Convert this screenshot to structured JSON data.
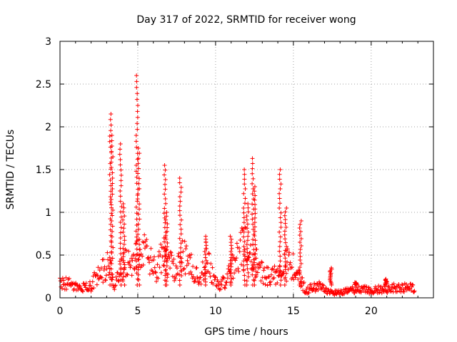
{
  "chart_data": {
    "type": "scatter",
    "title": "Day 317 of 2022, SRMTID for receiver wong",
    "xlabel": "GPS time / hours",
    "ylabel": "SRMTID / TECUs",
    "xlim": [
      0,
      24
    ],
    "ylim": [
      0,
      3
    ],
    "xticks": [
      0,
      5,
      10,
      15,
      20
    ],
    "yticks": [
      0,
      0.5,
      1,
      1.5,
      2,
      2.5,
      3
    ],
    "xtick_labels": [
      "0",
      "5",
      "10",
      "15",
      "20"
    ],
    "ytick_labels": [
      "0",
      "0.5",
      "1",
      "1.5",
      "2",
      "2.5",
      "3"
    ],
    "grid": true,
    "marker": "+",
    "series_color": "#ff0000",
    "baseline": [
      [
        0,
        0.17
      ],
      [
        0.3,
        0.18
      ],
      [
        0.6,
        0.16
      ],
      [
        1.0,
        0.13
      ],
      [
        1.5,
        0.12
      ],
      [
        2.0,
        0.14
      ],
      [
        2.3,
        0.24
      ],
      [
        2.6,
        0.28
      ],
      [
        2.9,
        0.36
      ],
      [
        3.1,
        0.4
      ],
      [
        3.3,
        0.32
      ],
      [
        3.5,
        0.1
      ],
      [
        3.8,
        0.3
      ],
      [
        4.2,
        0.4
      ],
      [
        4.6,
        0.45
      ],
      [
        5.0,
        0.5
      ],
      [
        5.4,
        0.55
      ],
      [
        5.8,
        0.42
      ],
      [
        6.2,
        0.3
      ],
      [
        6.6,
        0.5
      ],
      [
        7.0,
        0.45
      ],
      [
        7.4,
        0.35
      ],
      [
        7.8,
        0.48
      ],
      [
        8.2,
        0.45
      ],
      [
        8.6,
        0.3
      ],
      [
        9.0,
        0.18
      ],
      [
        9.4,
        0.5
      ],
      [
        9.8,
        0.25
      ],
      [
        10.2,
        0.14
      ],
      [
        10.6,
        0.2
      ],
      [
        11.0,
        0.3
      ],
      [
        11.5,
        0.55
      ],
      [
        12.0,
        0.6
      ],
      [
        12.4,
        0.45
      ],
      [
        12.8,
        0.35
      ],
      [
        13.2,
        0.25
      ],
      [
        13.6,
        0.25
      ],
      [
        14.0,
        0.3
      ],
      [
        14.4,
        0.4
      ],
      [
        14.8,
        0.4
      ],
      [
        15.2,
        0.3
      ],
      [
        15.5,
        0.2
      ],
      [
        15.8,
        0.08
      ],
      [
        16.2,
        0.12
      ],
      [
        16.6,
        0.14
      ],
      [
        17.0,
        0.1
      ],
      [
        17.5,
        0.06
      ],
      [
        18.0,
        0.06
      ],
      [
        18.5,
        0.08
      ],
      [
        19.0,
        0.1
      ],
      [
        19.5,
        0.1
      ],
      [
        20.0,
        0.08
      ],
      [
        20.5,
        0.1
      ],
      [
        21.0,
        0.1
      ],
      [
        21.5,
        0.12
      ],
      [
        22.0,
        0.12
      ],
      [
        22.5,
        0.12
      ],
      [
        22.8,
        0.1
      ]
    ],
    "bursts": [
      {
        "x": 3.25,
        "peak": 2.15
      },
      {
        "x": 3.35,
        "peak": 1.9
      },
      {
        "x": 3.9,
        "peak": 1.8
      },
      {
        "x": 4.1,
        "peak": 1.1
      },
      {
        "x": 4.95,
        "peak": 2.6
      },
      {
        "x": 5.05,
        "peak": 1.75
      },
      {
        "x": 6.75,
        "peak": 1.55
      },
      {
        "x": 6.85,
        "peak": 1.0
      },
      {
        "x": 7.75,
        "peak": 1.4
      },
      {
        "x": 9.35,
        "peak": 0.72
      },
      {
        "x": 11.0,
        "peak": 0.72
      },
      {
        "x": 11.85,
        "peak": 1.5
      },
      {
        "x": 12.05,
        "peak": 1.1
      },
      {
        "x": 12.4,
        "peak": 1.63
      },
      {
        "x": 12.55,
        "peak": 1.3
      },
      {
        "x": 14.15,
        "peak": 1.5
      },
      {
        "x": 14.5,
        "peak": 1.05
      },
      {
        "x": 15.45,
        "peak": 0.9
      },
      {
        "x": 17.4,
        "peak": 0.35
      },
      {
        "x": 19.0,
        "peak": 0.18
      },
      {
        "x": 20.95,
        "peak": 0.22
      }
    ]
  }
}
